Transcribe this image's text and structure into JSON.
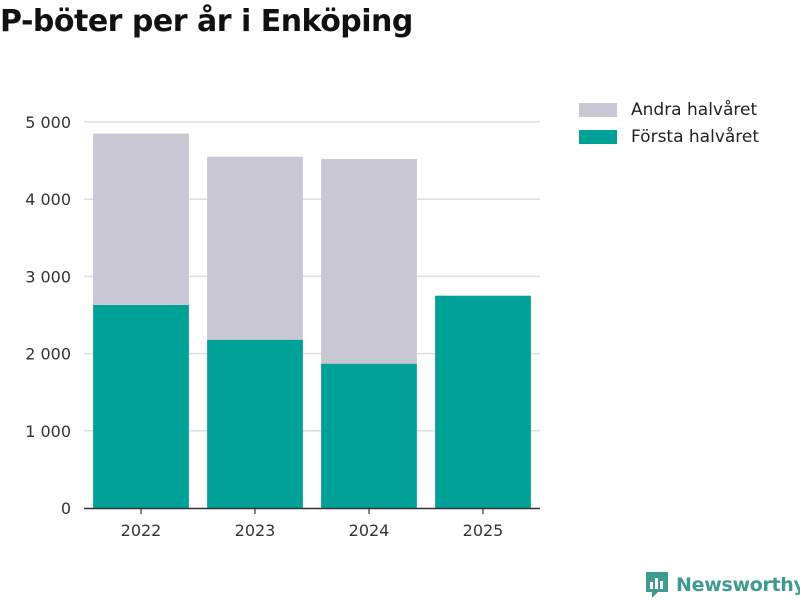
{
  "chart_data": {
    "type": "bar",
    "stacked": true,
    "title": "P-böter per år i Enköping",
    "categories": [
      "2022",
      "2023",
      "2024",
      "2025"
    ],
    "series": [
      {
        "name": "Första halvåret",
        "color": "#00a297",
        "values": [
          2630,
          2180,
          1870,
          2750
        ]
      },
      {
        "name": "Andra halvåret",
        "color": "#c8c7d3",
        "values": [
          2220,
          2370,
          2650,
          0
        ]
      }
    ],
    "yticks": [
      0,
      1000,
      2000,
      3000,
      4000,
      5000
    ],
    "ytick_labels": [
      "0",
      "1 000",
      "2 000",
      "3 000",
      "4 000",
      "5 000"
    ],
    "ylim": [
      0,
      5000
    ],
    "xlabel": "",
    "ylabel": "",
    "legend_position": "top-right",
    "grid": true
  },
  "legend": [
    {
      "label": "Andra halvåret",
      "color": "#c8c7d3"
    },
    {
      "label": "Första halvåret",
      "color": "#00a297"
    }
  ],
  "brand": {
    "name": "Newsworthy",
    "color": "#3f9a8f",
    "icon": "newsworthy-logo-icon"
  }
}
